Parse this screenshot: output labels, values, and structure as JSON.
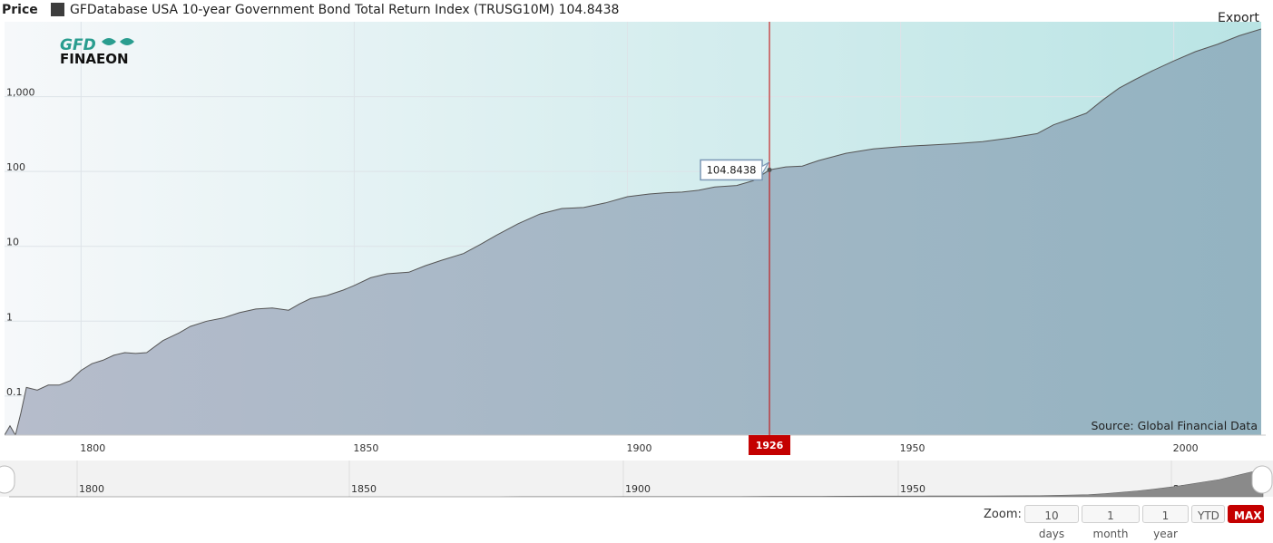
{
  "header": {
    "price_label": "Price",
    "legend_text": "GFDatabase USA 10-year Government Bond Total Return Index (TRUSG10M) 104.8438",
    "export_label": "Export"
  },
  "logo": {
    "line1": "GFD",
    "line2": "FINAEON"
  },
  "source_text": "Source: Global Financial Data",
  "tooltip": {
    "value": "104.8438",
    "year_label": "1926"
  },
  "zoom": {
    "label": "Zoom:",
    "buttons": [
      "10 days",
      "1 month",
      "1 year",
      "YTD",
      "MAX"
    ],
    "active": "MAX"
  },
  "navigator": {
    "tick_labels": [
      "1800",
      "1850",
      "1900",
      "1950",
      "2000"
    ]
  },
  "colors": {
    "accent": "#c40000",
    "area_fill": "#9aaabb",
    "line": "#555555",
    "bg_left": "#f6f8fa",
    "bg_right": "#b9e4e4",
    "crosshair": "#c40000"
  },
  "chart_data": {
    "type": "area",
    "title": "GFDatabase USA 10-year Government Bond Total Return Index (TRUSG10M)",
    "xlabel": "",
    "ylabel": "",
    "y_scale": "log",
    "ylim": [
      0.03,
      10000
    ],
    "xlim": [
      1786,
      2016
    ],
    "x_tick_labels": [
      "1800",
      "1850",
      "1900",
      "1950",
      "2000"
    ],
    "y_tick_labels": [
      "0.1",
      "1",
      "10",
      "100",
      "1,000"
    ],
    "y_tick_values": [
      0.1,
      1,
      10,
      100,
      1000
    ],
    "x_tick_values": [
      1800,
      1850,
      1900,
      1950,
      2000
    ],
    "grid": true,
    "highlight": {
      "x": 1926,
      "y": 104.8438
    },
    "series": [
      {
        "name": "GFDatabase USA 10-year Government Bond Total Return Index (TRUSG10M)",
        "x": [
          1786,
          1787,
          1788,
          1789,
          1790,
          1792,
          1794,
          1796,
          1798,
          1800,
          1802,
          1804,
          1806,
          1808,
          1810,
          1812,
          1815,
          1818,
          1820,
          1823,
          1826,
          1829,
          1832,
          1835,
          1838,
          1840,
          1842,
          1845,
          1848,
          1850,
          1853,
          1856,
          1860,
          1863,
          1866,
          1870,
          1873,
          1876,
          1880,
          1884,
          1888,
          1892,
          1896,
          1900,
          1904,
          1907,
          1910,
          1913,
          1916,
          1920,
          1923,
          1926,
          1929,
          1932,
          1935,
          1940,
          1945,
          1950,
          1955,
          1960,
          1965,
          1970,
          1975,
          1978,
          1981,
          1984,
          1987,
          1990,
          1993,
          1996,
          2000,
          2004,
          2008,
          2012,
          2016
        ],
        "y": [
          0.03,
          0.04,
          0.03,
          0.06,
          0.13,
          0.12,
          0.14,
          0.14,
          0.16,
          0.22,
          0.27,
          0.3,
          0.35,
          0.38,
          0.37,
          0.38,
          0.55,
          0.7,
          0.85,
          1.0,
          1.1,
          1.3,
          1.45,
          1.5,
          1.4,
          1.7,
          2.0,
          2.2,
          2.6,
          3.0,
          3.8,
          4.3,
          4.5,
          5.5,
          6.5,
          8.0,
          10.5,
          14,
          20,
          27,
          32,
          33,
          38,
          46,
          50,
          52,
          53,
          56,
          62,
          65,
          75,
          104.8438,
          115,
          118,
          140,
          175,
          200,
          215,
          225,
          235,
          250,
          280,
          320,
          420,
          500,
          600,
          900,
          1300,
          1700,
          2200,
          3000,
          4000,
          5000,
          6500,
          8000
        ]
      }
    ]
  }
}
